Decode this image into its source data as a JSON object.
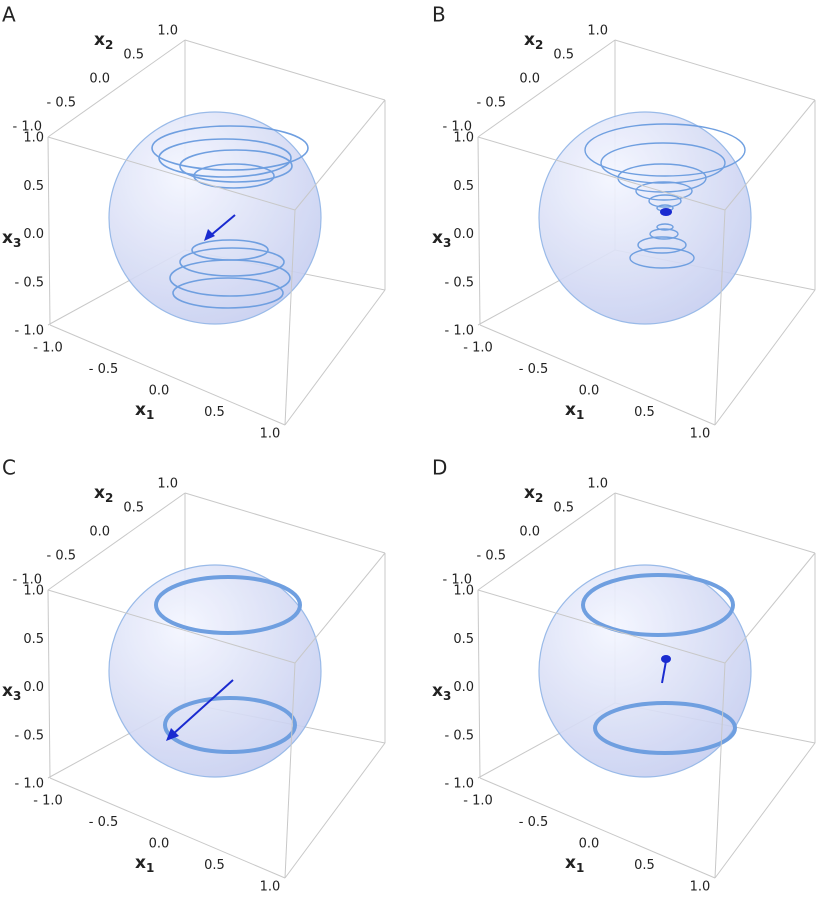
{
  "panels": [
    {
      "label": "A",
      "axes": {
        "x1": {
          "title": "x",
          "sub": "1",
          "ticks": [
            "- 1.0",
            "- 0.5",
            "0.0",
            "0.5",
            "1.0"
          ]
        },
        "x2": {
          "title": "x",
          "sub": "2",
          "ticks": [
            "- 1.0",
            "- 0.5",
            "0.0",
            "0.5",
            "1.0"
          ]
        },
        "x3": {
          "title": "x",
          "sub": "3",
          "ticks": [
            "- 1.0",
            "- 0.5",
            "0.0",
            "0.5",
            "1.0"
          ]
        }
      }
    },
    {
      "label": "B",
      "axes": {
        "x1": {
          "title": "x",
          "sub": "1",
          "ticks": [
            "- 1.0",
            "- 0.5",
            "0.0",
            "0.5",
            "1.0"
          ]
        },
        "x2": {
          "title": "x",
          "sub": "2",
          "ticks": [
            "- 1.0",
            "- 0.5",
            "0.0",
            "0.5",
            "1.0"
          ]
        },
        "x3": {
          "title": "x",
          "sub": "3",
          "ticks": [
            "- 1.0",
            "- 0.5",
            "0.0",
            "0.5",
            "1.0"
          ]
        }
      }
    },
    {
      "label": "C",
      "axes": {
        "x1": {
          "title": "x",
          "sub": "1",
          "ticks": [
            "- 1.0",
            "- 0.5",
            "0.0",
            "0.5",
            "1.0"
          ]
        },
        "x2": {
          "title": "x",
          "sub": "2",
          "ticks": [
            "- 1.0",
            "- 0.5",
            "0.0",
            "0.5",
            "1.0"
          ]
        },
        "x3": {
          "title": "x",
          "sub": "3",
          "ticks": [
            "- 1.0",
            "- 0.5",
            "0.0",
            "0.5",
            "1.0"
          ]
        }
      }
    },
    {
      "label": "D",
      "axes": {
        "x1": {
          "title": "x",
          "sub": "1",
          "ticks": [
            "- 1.0",
            "- 0.5",
            "0.0",
            "0.5",
            "1.0"
          ]
        },
        "x2": {
          "title": "x",
          "sub": "2",
          "ticks": [
            "- 1.0",
            "- 0.5",
            "0.0",
            "0.5",
            "1.0"
          ]
        },
        "x3": {
          "title": "x",
          "sub": "3",
          "ticks": [
            "- 1.0",
            "- 0.5",
            "0.0",
            "0.5",
            "1.0"
          ]
        }
      }
    }
  ]
}
